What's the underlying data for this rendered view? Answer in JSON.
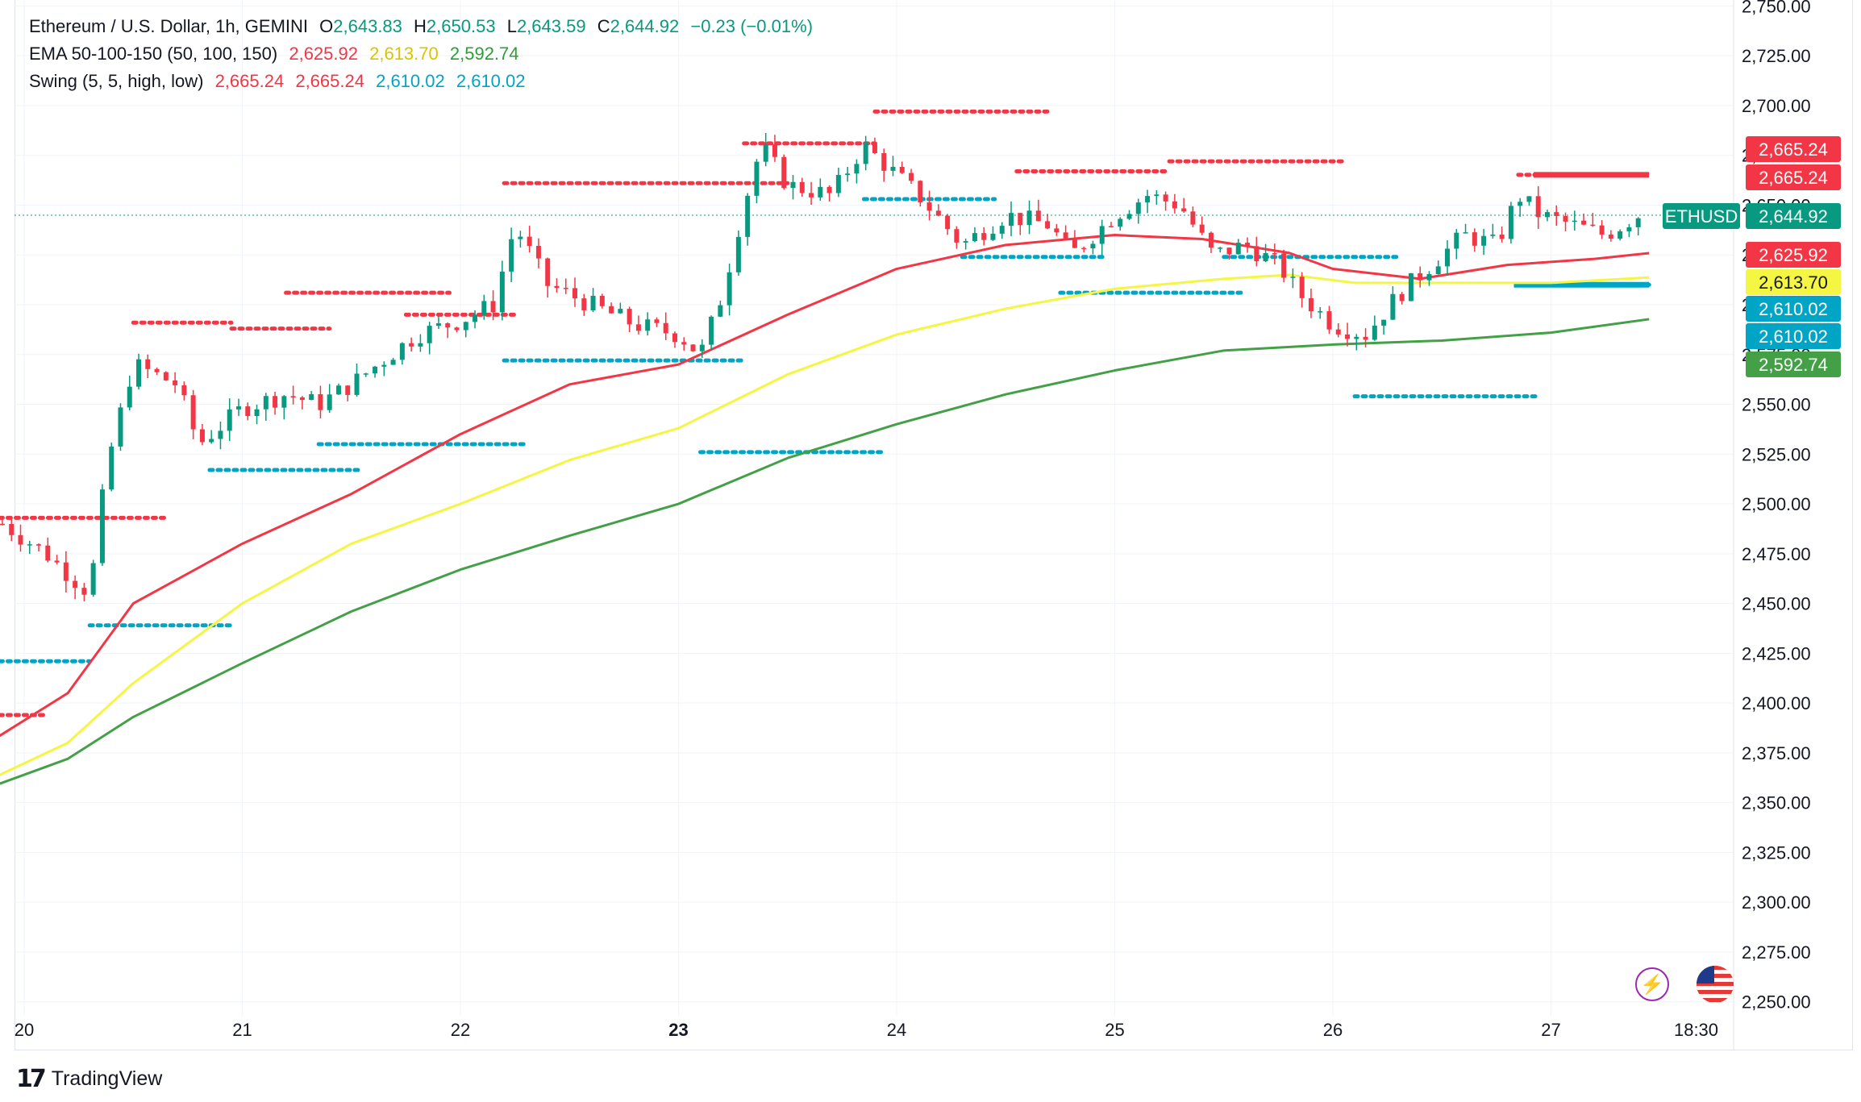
{
  "legend": {
    "symbol": "Ethereum / U.S. Dollar, 1h, GEMINI",
    "o_label": "O",
    "o_value": "2,643.83",
    "h_label": "H",
    "h_value": "2,650.53",
    "l_label": "L",
    "l_value": "2,643.59",
    "c_label": "C",
    "c_value": "2,644.92",
    "change": "−0.23 (−0.01%)",
    "ema_label": "EMA 50-100-150 (50, 100, 150)",
    "ema_values": [
      "2,625.92",
      "2,613.70",
      "2,592.74"
    ],
    "swing_label": "Swing (5, 5, high, low)",
    "swing_values": [
      "2,665.24",
      "2,665.24",
      "2,610.02",
      "2,610.02"
    ]
  },
  "branding": {
    "logo_mark": "17",
    "name": "TradingView"
  },
  "colors": {
    "up": "#089981",
    "down": "#f23645",
    "ema50": "#f23645",
    "ema100": "#f5f543",
    "ema150": "#43a047",
    "swing_high": "#f23645",
    "swing_low": "#00a5c6",
    "grid": "#f0f3fa",
    "axis_text": "#131722"
  },
  "chart_data": {
    "type": "candlestick",
    "title": "Ethereum / U.S. Dollar, 1h, GEMINI",
    "symbol": "ETHUSD",
    "timeframe": "1h",
    "x_ticks": [
      "20",
      "21",
      "22",
      "23",
      "24",
      "25",
      "26",
      "27",
      "18:30"
    ],
    "y_ticks": [
      2250,
      2275,
      2300,
      2325,
      2350,
      2375,
      2400,
      2425,
      2450,
      2475,
      2500,
      2525,
      2550,
      2575,
      2600,
      2625,
      2650,
      2675,
      2700,
      2725,
      2750
    ],
    "y_tick_labels": [
      "2,250.00",
      "2,275.00",
      "2,300.00",
      "2,325.00",
      "2,350.00",
      "2,375.00",
      "2,400.00",
      "2,425.00",
      "2,450.00",
      "2,475.00",
      "2,500.00",
      "2,525.00",
      "2,550.00",
      "2,575.00",
      "2,600.00",
      "2,625.00",
      "2,650.00",
      "2,675.00",
      "2,700.00",
      "2,725.00",
      "2,750.00"
    ],
    "ylim": [
      2243,
      2753
    ],
    "days": [
      20,
      21,
      22,
      23,
      24,
      25,
      26,
      27
    ],
    "ohlc_closes_hourly_key": [
      [
        19.9,
        2490
      ],
      [
        20.1,
        2475
      ],
      [
        20.3,
        2455
      ],
      [
        20.38,
        2520
      ],
      [
        20.5,
        2570
      ],
      [
        20.7,
        2560
      ],
      [
        20.8,
        2530
      ],
      [
        21.0,
        2548
      ],
      [
        21.2,
        2555
      ],
      [
        21.35,
        2550
      ],
      [
        21.5,
        2560
      ],
      [
        21.8,
        2585
      ],
      [
        22.0,
        2592
      ],
      [
        22.15,
        2600
      ],
      [
        22.25,
        2640
      ],
      [
        22.4,
        2610
      ],
      [
        22.6,
        2600
      ],
      [
        22.8,
        2590
      ],
      [
        23.0,
        2585
      ],
      [
        23.1,
        2575
      ],
      [
        23.2,
        2605
      ],
      [
        23.3,
        2650
      ],
      [
        23.38,
        2680
      ],
      [
        23.5,
        2660
      ],
      [
        23.7,
        2655
      ],
      [
        23.85,
        2680
      ],
      [
        23.95,
        2670
      ],
      [
        24.1,
        2655
      ],
      [
        24.3,
        2630
      ],
      [
        24.5,
        2645
      ],
      [
        24.7,
        2640
      ],
      [
        24.8,
        2625
      ],
      [
        25.0,
        2645
      ],
      [
        25.15,
        2655
      ],
      [
        25.3,
        2650
      ],
      [
        25.45,
        2625
      ],
      [
        25.6,
        2630
      ],
      [
        25.75,
        2620
      ],
      [
        25.85,
        2605
      ],
      [
        26.0,
        2590
      ],
      [
        26.15,
        2585
      ],
      [
        26.3,
        2605
      ],
      [
        26.45,
        2620
      ],
      [
        26.6,
        2635
      ],
      [
        26.75,
        2630
      ],
      [
        26.85,
        2655
      ],
      [
        26.95,
        2645
      ],
      [
        27.1,
        2640
      ],
      [
        27.25,
        2635
      ],
      [
        27.4,
        2645
      ]
    ],
    "ema50": [
      [
        19.85,
        2381
      ],
      [
        20.2,
        2405
      ],
      [
        20.5,
        2450
      ],
      [
        21.0,
        2480
      ],
      [
        21.5,
        2505
      ],
      [
        22.0,
        2535
      ],
      [
        22.5,
        2560
      ],
      [
        23.0,
        2570
      ],
      [
        23.5,
        2595
      ],
      [
        24.0,
        2618
      ],
      [
        24.5,
        2630
      ],
      [
        25.0,
        2635
      ],
      [
        25.4,
        2633
      ],
      [
        25.8,
        2626
      ],
      [
        26.0,
        2618
      ],
      [
        26.4,
        2613
      ],
      [
        26.8,
        2620
      ],
      [
        27.2,
        2623
      ],
      [
        27.45,
        2625.92
      ]
    ],
    "ema100": [
      [
        19.85,
        2362
      ],
      [
        20.2,
        2380
      ],
      [
        20.5,
        2410
      ],
      [
        21.0,
        2450
      ],
      [
        21.5,
        2480
      ],
      [
        22.0,
        2500
      ],
      [
        22.5,
        2522
      ],
      [
        23.0,
        2538
      ],
      [
        23.5,
        2565
      ],
      [
        24.0,
        2585
      ],
      [
        24.5,
        2598
      ],
      [
        25.0,
        2608
      ],
      [
        25.5,
        2613
      ],
      [
        25.8,
        2615
      ],
      [
        26.1,
        2611
      ],
      [
        26.5,
        2611
      ],
      [
        27.0,
        2611
      ],
      [
        27.45,
        2613.7
      ]
    ],
    "ema150": [
      [
        19.85,
        2358
      ],
      [
        20.2,
        2372
      ],
      [
        20.5,
        2393
      ],
      [
        21.0,
        2420
      ],
      [
        21.5,
        2446
      ],
      [
        22.0,
        2467
      ],
      [
        22.5,
        2484
      ],
      [
        23.0,
        2500
      ],
      [
        23.5,
        2523
      ],
      [
        24.0,
        2540
      ],
      [
        24.5,
        2555
      ],
      [
        25.0,
        2567
      ],
      [
        25.5,
        2577
      ],
      [
        26.0,
        2580
      ],
      [
        26.5,
        2582
      ],
      [
        27.0,
        2586
      ],
      [
        27.45,
        2592.74
      ]
    ],
    "swing_highs": [
      [
        19.85,
        20.1,
        2394
      ],
      [
        19.85,
        20.65,
        2493
      ],
      [
        20.5,
        20.95,
        2591
      ],
      [
        20.95,
        21.4,
        2588
      ],
      [
        21.2,
        21.95,
        2606
      ],
      [
        21.75,
        22.25,
        2595
      ],
      [
        22.2,
        23.5,
        2661
      ],
      [
        23.3,
        23.9,
        2681
      ],
      [
        23.9,
        24.7,
        2697
      ],
      [
        24.55,
        25.25,
        2667
      ],
      [
        25.25,
        26.05,
        2672
      ],
      [
        26.85,
        26.95,
        2665.24
      ]
    ],
    "swing_lows": [
      [
        19.85,
        20.3,
        2421
      ],
      [
        20.3,
        20.95,
        2439
      ],
      [
        20.85,
        21.55,
        2517
      ],
      [
        21.35,
        22.3,
        2530
      ],
      [
        22.2,
        23.3,
        2572
      ],
      [
        23.1,
        23.95,
        2526
      ],
      [
        23.85,
        24.45,
        2653
      ],
      [
        24.3,
        24.95,
        2624
      ],
      [
        24.75,
        25.6,
        2606
      ],
      [
        25.5,
        26.3,
        2624
      ],
      [
        26.1,
        26.95,
        2554
      ],
      [
        26.85,
        27.45,
        2610.02
      ]
    ],
    "current_price": 2644.92,
    "price_labels": [
      {
        "text": "2,665.24",
        "value": 2665.24,
        "color": "#f23645"
      },
      {
        "text": "2,665.24",
        "value": 2665.24,
        "color": "#f23645"
      },
      {
        "text": "ETHUSD",
        "value": 2644.92,
        "color": "#089981"
      },
      {
        "text": "2,644.92",
        "value": 2644.92,
        "color": "#089981"
      },
      {
        "text": "2,625.92",
        "value": 2625.92,
        "color": "#f23645"
      },
      {
        "text": "2,613.70",
        "value": 2613.7,
        "color": "#f5f543"
      },
      {
        "text": "2,610.02",
        "value": 2610.02,
        "color": "#00a5c6"
      },
      {
        "text": "2,610.02",
        "value": 2610.02,
        "color": "#00a5c6"
      },
      {
        "text": "2,592.74",
        "value": 2592.74,
        "color": "#43a047"
      }
    ],
    "grid": true
  }
}
